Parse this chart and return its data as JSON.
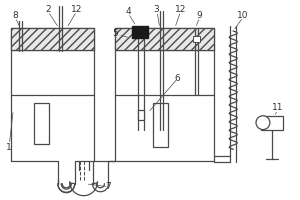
{
  "fig_width": 3.0,
  "fig_height": 2.0,
  "dpi": 100,
  "bg_color": "#ffffff",
  "line_color": "#4a4a4a",
  "lw": 0.9
}
